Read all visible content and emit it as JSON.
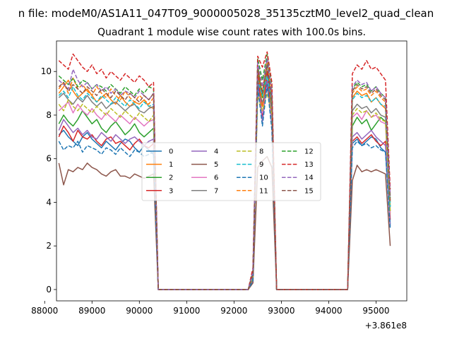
{
  "chart_data": {
    "type": "line",
    "suptitle": "n file: modeM0/AS1A11_047T09_9000005028_35135cztM0_level2_quad_clean",
    "title": "Quadrant 1 module wise count rates with 100.0s bins.",
    "xlabel": "",
    "ylabel": "",
    "x_offset_label": "+3.861e8",
    "xlim": [
      88250,
      95650
    ],
    "ylim": [
      -0.52,
      11.4
    ],
    "x_ticks": [
      88000,
      89000,
      90000,
      91000,
      92000,
      93000,
      94000,
      95000
    ],
    "x_tick_labels": [
      "88000",
      "89000",
      "90000",
      "91000",
      "92000",
      "93000",
      "94000",
      "95000"
    ],
    "y_ticks": [
      0,
      2,
      4,
      6,
      8,
      10
    ],
    "y_tick_labels": [
      "0",
      "2",
      "4",
      "6",
      "8",
      "10"
    ],
    "legend": {
      "placement": "center",
      "columns": 4
    },
    "x_segments": [
      [
        88300,
        88400,
        88500,
        88600,
        88700,
        88800,
        88900,
        89000,
        89100,
        89200,
        89300,
        89400,
        89500,
        89600,
        89700,
        89800,
        89900,
        90000,
        90100,
        90200,
        90300
      ],
      [
        92400,
        92500,
        92600,
        92700,
        92800
      ],
      [
        94500,
        94600,
        94700,
        94800,
        94900,
        95000,
        95100,
        95200,
        95300
      ]
    ],
    "zero_x": [
      90400,
      90500,
      92300,
      92900,
      93000,
      94400
    ],
    "series": [
      {
        "name": "0",
        "color": "#1f77b4",
        "dash": "solid",
        "segments": [
          [
            7.1,
            7.3,
            7.0,
            6.8,
            6.6,
            7.0,
            7.2,
            6.9,
            6.7,
            6.5,
            6.8,
            6.6,
            6.4,
            6.7,
            6.9,
            6.8,
            6.5,
            6.3,
            6.6,
            6.4,
            6.2
          ],
          [
            0.5,
            9.8,
            8.0,
            9.6,
            8.0
          ],
          [
            6.7,
            6.9,
            6.6,
            6.8,
            7.0,
            6.9,
            6.5,
            6.3,
            3.0
          ]
        ]
      },
      {
        "name": "1",
        "color": "#ff7f0e",
        "dash": "solid",
        "segments": [
          [
            9.0,
            9.3,
            9.6,
            9.1,
            8.8,
            9.0,
            9.2,
            8.9,
            8.6,
            8.8,
            9.0,
            8.7,
            8.5,
            8.9,
            8.6,
            8.4,
            8.6,
            8.5,
            8.7,
            8.4,
            8.3
          ],
          [
            0.7,
            10.1,
            8.4,
            10.0,
            8.3
          ],
          [
            8.8,
            9.1,
            8.9,
            9.0,
            8.6,
            8.8,
            8.5,
            8.3,
            4.0
          ]
        ]
      },
      {
        "name": "2",
        "color": "#2ca02c",
        "dash": "solid",
        "segments": [
          [
            7.6,
            8.0,
            7.7,
            7.5,
            7.8,
            8.2,
            7.9,
            7.6,
            7.8,
            7.4,
            7.2,
            7.5,
            7.7,
            7.4,
            7.1,
            7.3,
            7.6,
            7.2,
            7.0,
            7.2,
            7.4
          ],
          [
            0.8,
            10.3,
            8.8,
            10.4,
            8.5
          ],
          [
            7.5,
            7.9,
            7.6,
            7.8,
            7.3,
            7.6,
            7.9,
            7.7,
            3.8
          ]
        ]
      },
      {
        "name": "3",
        "color": "#d62728",
        "dash": "solid",
        "segments": [
          [
            7.0,
            7.5,
            7.2,
            6.8,
            7.3,
            7.0,
            6.9,
            7.1,
            6.8,
            6.6,
            6.9,
            7.0,
            6.7,
            6.8,
            6.6,
            6.4,
            6.7,
            6.9,
            6.6,
            6.5,
            6.7
          ],
          [
            0.5,
            9.9,
            7.9,
            10.0,
            7.8
          ],
          [
            6.8,
            7.0,
            6.7,
            6.9,
            7.1,
            6.8,
            6.6,
            6.8,
            3.2
          ]
        ]
      },
      {
        "name": "4",
        "color": "#9467bd",
        "dash": "solid",
        "segments": [
          [
            7.3,
            7.8,
            7.5,
            7.2,
            7.4,
            7.1,
            7.3,
            7.0,
            6.9,
            7.2,
            7.0,
            6.8,
            7.1,
            6.9,
            6.7,
            6.9,
            7.0,
            6.8,
            6.6,
            6.8,
            6.9
          ],
          [
            0.4,
            9.5,
            7.7,
            9.6,
            7.5
          ],
          [
            7.0,
            7.2,
            6.9,
            7.1,
            7.3,
            7.0,
            6.8,
            6.6,
            2.9
          ]
        ]
      },
      {
        "name": "5",
        "color": "#8c564b",
        "dash": "solid",
        "segments": [
          [
            5.8,
            4.8,
            5.5,
            5.4,
            5.6,
            5.5,
            5.8,
            5.6,
            5.5,
            5.3,
            5.2,
            5.4,
            5.5,
            5.2,
            5.2,
            5.1,
            5.3,
            5.2,
            5.1,
            5.2,
            5.3
          ],
          [
            0.3,
            5.6,
            5.9,
            6.1,
            5.6
          ],
          [
            5.0,
            5.7,
            5.4,
            5.5,
            5.4,
            5.5,
            5.4,
            5.3,
            2.0
          ]
        ]
      },
      {
        "name": "6",
        "color": "#e377c2",
        "dash": "solid",
        "segments": [
          [
            8.2,
            8.4,
            8.6,
            8.1,
            8.5,
            8.2,
            8.0,
            8.3,
            8.0,
            7.8,
            8.1,
            7.9,
            7.7,
            8.0,
            7.8,
            7.6,
            7.9,
            7.7,
            7.5,
            7.7,
            7.8
          ],
          [
            0.6,
            9.2,
            8.1,
            9.3,
            7.9
          ],
          [
            7.9,
            8.1,
            7.8,
            8.2,
            7.9,
            8.0,
            7.7,
            7.6,
            3.5
          ]
        ]
      },
      {
        "name": "7",
        "color": "#7f7f7f",
        "dash": "solid",
        "segments": [
          [
            8.8,
            9.0,
            8.7,
            8.5,
            8.8,
            8.6,
            8.9,
            8.6,
            8.4,
            8.6,
            8.3,
            8.5,
            8.6,
            8.4,
            8.2,
            8.4,
            8.5,
            8.2,
            8.1,
            8.3,
            8.4
          ],
          [
            0.5,
            9.1,
            8.6,
            9.2,
            8.3
          ],
          [
            8.2,
            8.5,
            8.3,
            8.4,
            8.1,
            8.3,
            8.0,
            7.9,
            3.6
          ]
        ]
      },
      {
        "name": "8",
        "color": "#bcbd22",
        "dash": "dashed",
        "segments": [
          [
            8.5,
            8.2,
            8.7,
            8.4,
            8.2,
            8.5,
            8.3,
            8.1,
            8.4,
            8.2,
            8.0,
            8.3,
            8.1,
            7.9,
            8.2,
            8.0,
            7.8,
            8.1,
            7.9,
            7.7,
            8.0
          ],
          [
            0.6,
            8.9,
            8.2,
            9.0,
            8.0
          ],
          [
            8.0,
            8.3,
            8.1,
            8.2,
            7.9,
            8.1,
            7.8,
            7.7,
            3.5
          ]
        ]
      },
      {
        "name": "9",
        "color": "#17becf",
        "dash": "dashed",
        "segments": [
          [
            8.9,
            9.1,
            8.8,
            9.3,
            8.9,
            8.7,
            9.0,
            8.8,
            8.6,
            8.9,
            8.7,
            8.5,
            8.8,
            8.6,
            8.4,
            8.7,
            8.5,
            8.3,
            8.6,
            8.4,
            8.5
          ],
          [
            0.7,
            9.6,
            8.9,
            9.8,
            8.6
          ],
          [
            8.7,
            9.0,
            8.8,
            8.9,
            8.6,
            8.8,
            8.5,
            8.4,
            3.8
          ]
        ]
      },
      {
        "name": "10",
        "color": "#1f77b4",
        "dash": "dashed",
        "segments": [
          [
            6.8,
            6.4,
            6.6,
            6.5,
            6.8,
            6.3,
            6.6,
            6.5,
            6.4,
            6.2,
            6.5,
            6.4,
            6.2,
            6.5,
            6.3,
            6.1,
            6.4,
            6.3,
            6.1,
            6.2,
            6.3
          ],
          [
            0.4,
            9.3,
            7.5,
            9.4,
            7.3
          ],
          [
            6.5,
            6.8,
            6.6,
            6.7,
            6.5,
            6.6,
            6.4,
            6.3,
            2.8
          ]
        ]
      },
      {
        "name": "11",
        "color": "#ff7f0e",
        "dash": "dashed",
        "segments": [
          [
            9.2,
            9.5,
            9.0,
            9.7,
            9.2,
            9.4,
            9.1,
            8.9,
            9.3,
            9.0,
            8.8,
            9.2,
            8.9,
            8.7,
            9.1,
            8.8,
            8.6,
            8.9,
            8.7,
            8.5,
            8.8
          ],
          [
            0.8,
            10.2,
            9.1,
            10.5,
            8.8
          ],
          [
            9.0,
            9.3,
            9.1,
            9.2,
            8.9,
            9.1,
            8.8,
            8.6,
            4.1
          ]
        ]
      },
      {
        "name": "12",
        "color": "#2ca02c",
        "dash": "dashed",
        "segments": [
          [
            9.8,
            9.6,
            9.4,
            9.7,
            9.3,
            9.6,
            9.5,
            9.2,
            9.4,
            9.3,
            9.1,
            9.4,
            9.2,
            9.0,
            9.3,
            9.1,
            8.9,
            9.2,
            9.0,
            9.3,
            9.2
          ],
          [
            0.9,
            10.6,
            9.6,
            10.8,
            9.3
          ],
          [
            9.2,
            9.5,
            9.3,
            9.4,
            9.1,
            9.3,
            9.0,
            8.8,
            4.2
          ]
        ]
      },
      {
        "name": "13",
        "color": "#d62728",
        "dash": "dashed",
        "segments": [
          [
            10.5,
            10.3,
            10.1,
            10.8,
            10.5,
            10.2,
            10.0,
            10.3,
            9.9,
            10.1,
            9.7,
            10.0,
            9.8,
            9.6,
            9.9,
            9.7,
            9.5,
            9.8,
            9.6,
            9.3,
            9.5
          ],
          [
            1.0,
            10.7,
            10.2,
            10.9,
            9.5
          ],
          [
            9.9,
            10.3,
            10.1,
            10.5,
            10.1,
            10.2,
            9.9,
            9.6,
            4.6
          ]
        ]
      },
      {
        "name": "14",
        "color": "#9467bd",
        "dash": "dashed",
        "segments": [
          [
            9.6,
            9.4,
            9.2,
            10.1,
            9.6,
            9.3,
            9.5,
            9.2,
            9.4,
            9.1,
            9.3,
            9.0,
            9.2,
            8.9,
            9.1,
            9.0,
            8.8,
            9.1,
            8.9,
            8.7,
            9.0
          ],
          [
            0.8,
            10.4,
            9.3,
            10.6,
            9.0
          ],
          [
            9.3,
            9.6,
            9.4,
            9.5,
            9.1,
            9.3,
            9.0,
            8.8,
            4.3
          ]
        ]
      },
      {
        "name": "15",
        "color": "#8c564b",
        "dash": "dashed",
        "segments": [
          [
            9.3,
            9.5,
            9.1,
            9.4,
            9.2,
            9.0,
            9.3,
            9.1,
            8.9,
            9.2,
            9.0,
            8.8,
            9.1,
            8.9,
            8.7,
            9.0,
            8.8,
            8.6,
            8.9,
            8.7,
            9.0
          ],
          [
            0.7,
            10.1,
            9.0,
            10.3,
            8.7
          ],
          [
            9.1,
            9.4,
            9.2,
            9.3,
            9.0,
            9.2,
            8.9,
            8.7,
            4.0
          ]
        ]
      }
    ]
  }
}
